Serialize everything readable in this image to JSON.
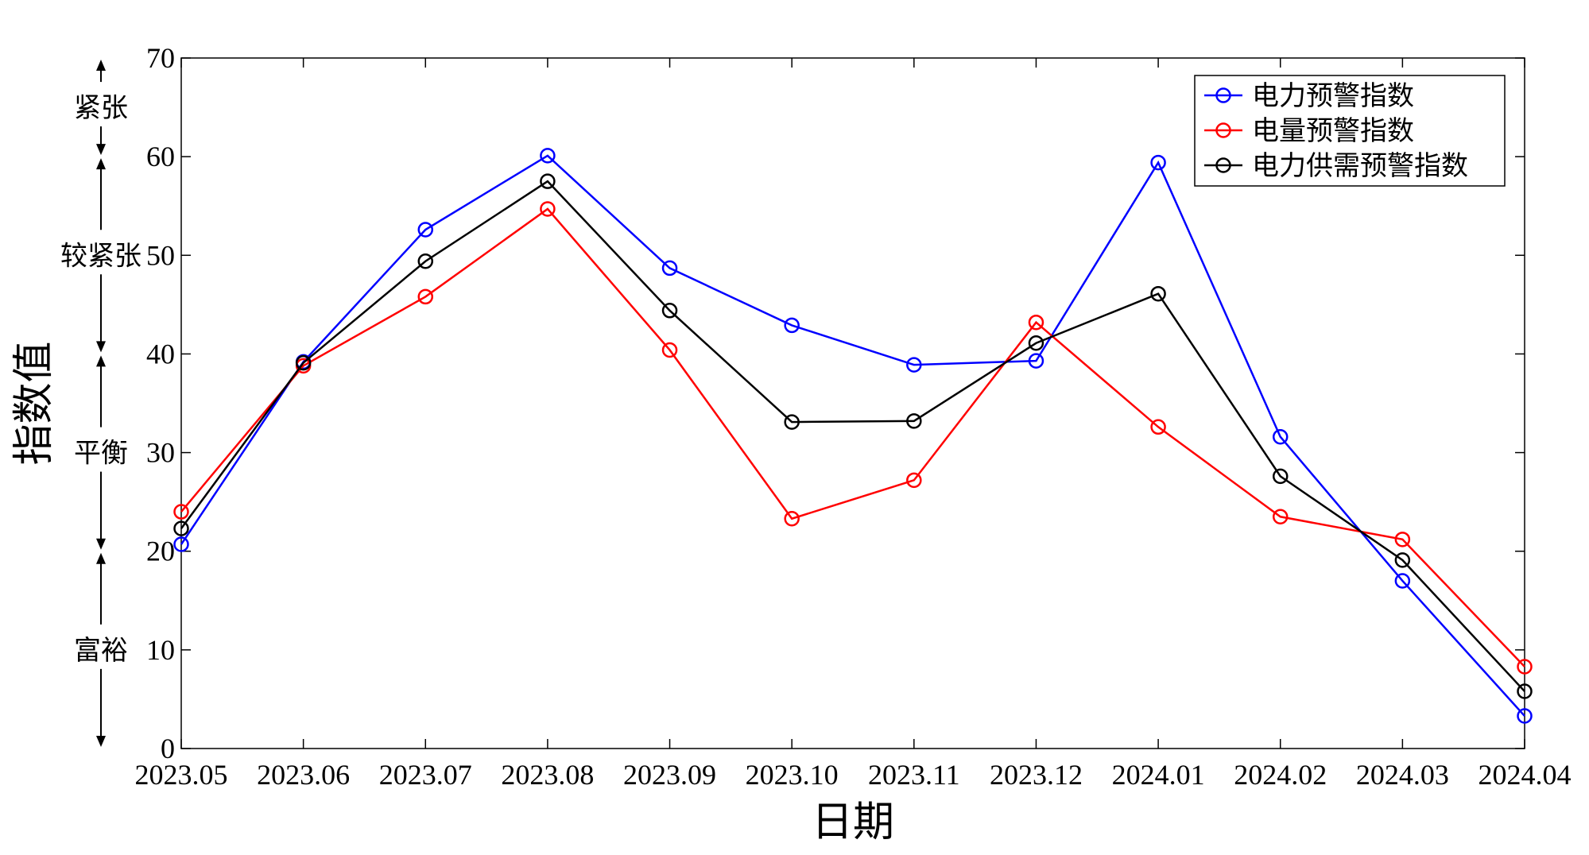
{
  "chart_data": {
    "type": "line",
    "xlabel": "日期",
    "ylabel": "指数值",
    "ylim": [
      0,
      70
    ],
    "yticks": [
      0,
      10,
      20,
      30,
      40,
      50,
      60,
      70
    ],
    "grid": false,
    "legend_position": "top-right",
    "categories": [
      "2023.05",
      "2023.06",
      "2023.07",
      "2023.08",
      "2023.09",
      "2023.10",
      "2023.11",
      "2023.12",
      "2024.01",
      "2024.02",
      "2024.03",
      "2024.04"
    ],
    "series": [
      {
        "name": "电力预警指数",
        "color": "#0000ff",
        "values": [
          20.7,
          39.2,
          52.6,
          60.1,
          48.7,
          42.9,
          38.9,
          39.3,
          59.4,
          31.6,
          17.0,
          3.3
        ]
      },
      {
        "name": "电量预警指数",
        "color": "#ff0000",
        "values": [
          24.0,
          38.8,
          45.8,
          54.7,
          40.4,
          23.3,
          27.2,
          43.2,
          32.6,
          23.5,
          21.2,
          8.3
        ]
      },
      {
        "name": "电力供需预警指数",
        "color": "#000000",
        "values": [
          22.3,
          39.1,
          49.4,
          57.5,
          44.4,
          33.1,
          33.2,
          41.1,
          46.1,
          27.6,
          19.1,
          5.8
        ]
      }
    ],
    "bands": [
      {
        "label": "紧张",
        "from": 60,
        "to": 70
      },
      {
        "label": "较紧张",
        "from": 40,
        "to": 60
      },
      {
        "label": "平衡",
        "from": 20,
        "to": 40
      },
      {
        "label": "富裕",
        "from": 0,
        "to": 20
      }
    ]
  }
}
